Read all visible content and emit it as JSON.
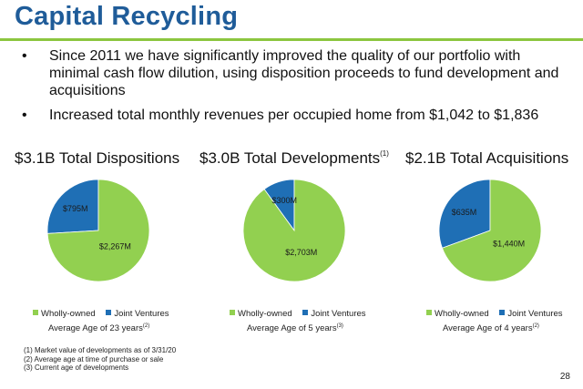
{
  "title": "Capital Recycling",
  "bullets": [
    "Since 2011 we have significantly improved the quality of our portfolio with minimal cash flow dilution, using disposition proceeds to fund development and acquisitions",
    "Increased total monthly revenues per occupied home from $1,042 to $1,836"
  ],
  "bullet_symbol": "•",
  "colors": {
    "title": "#1f5c99",
    "rule": "#8cc63f",
    "wholly_owned": "#92d050",
    "joint_ventures": "#1f6fb5"
  },
  "sections": [
    {
      "heading": "$3.1B Total Dispositions",
      "heading_note": "",
      "legend": [
        "Wholly-owned",
        "Joint Ventures"
      ],
      "age_text": "Average Age of 23 years",
      "age_note": "(2)"
    },
    {
      "heading": "$3.0B Total Developments",
      "heading_note": "(1)",
      "legend": [
        "Wholly-owned",
        "Joint Ventures"
      ],
      "age_text": "Average Age of 5 years",
      "age_note": "(3)"
    },
    {
      "heading": "$2.1B Total Acquisitions",
      "heading_note": "",
      "legend": [
        "Wholly-owned",
        "Joint Ventures"
      ],
      "age_text": "Average Age of 4 years",
      "age_note": "(2)"
    }
  ],
  "chart_data": [
    {
      "type": "pie",
      "title": "$3.1B Total Dispositions",
      "categories": [
        "Wholly-owned",
        "Joint Ventures"
      ],
      "values": [
        2267,
        795
      ],
      "labels": [
        "$2,267M",
        "$795M"
      ],
      "unit": "$M",
      "legend": "bottom"
    },
    {
      "type": "pie",
      "title": "$3.0B Total Developments",
      "categories": [
        "Wholly-owned",
        "Joint Ventures"
      ],
      "values": [
        2703,
        300
      ],
      "labels": [
        "$2,703M",
        "$300M"
      ],
      "unit": "$M",
      "legend": "bottom"
    },
    {
      "type": "pie",
      "title": "$2.1B Total Acquisitions",
      "categories": [
        "Wholly-owned",
        "Joint Ventures"
      ],
      "values": [
        1440,
        635
      ],
      "labels": [
        "$1,440M",
        "$635M"
      ],
      "unit": "$M",
      "legend": "bottom"
    }
  ],
  "footnotes": [
    "(1) Market value of developments as of 3/31/20",
    "(2) Average age at time of purchase or sale",
    "(3) Current age of developments"
  ],
  "page_number": "28"
}
